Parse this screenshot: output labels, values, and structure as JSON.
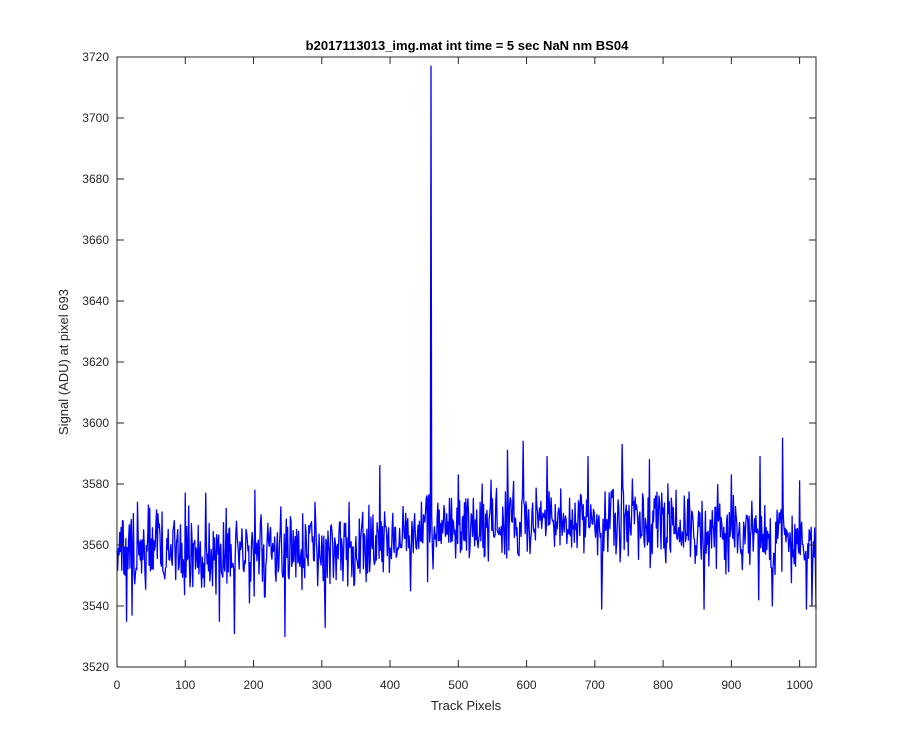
{
  "chart_data": {
    "type": "line",
    "title": "b2017113013_img.mat int time = 5 sec  NaN nm BS04",
    "xlabel": "Track Pixels",
    "ylabel": "Signal (ADU) at pixel 693",
    "xlim": [
      0,
      1024
    ],
    "ylim": [
      3520,
      3720
    ],
    "xticks": [
      0,
      100,
      200,
      300,
      400,
      500,
      600,
      700,
      800,
      900,
      1000
    ],
    "yticks": [
      3520,
      3540,
      3560,
      3580,
      3600,
      3620,
      3640,
      3660,
      3680,
      3700,
      3720
    ],
    "grid": false,
    "legend": "none",
    "series": [
      {
        "color": "#0000ff",
        "baseline_anchors": [
          [
            0,
            3557
          ],
          [
            100,
            3557
          ],
          [
            300,
            3558
          ],
          [
            400,
            3561
          ],
          [
            460,
            3565
          ],
          [
            560,
            3567
          ],
          [
            620,
            3567
          ],
          [
            700,
            3568
          ],
          [
            800,
            3568
          ],
          [
            900,
            3564
          ],
          [
            1000,
            3561
          ],
          [
            1024,
            3560
          ]
        ],
        "noise_amplitude": 9,
        "noise_seed": 693,
        "points": [
          [
            0,
            3558
          ],
          [
            8,
            3568
          ],
          [
            12,
            3550
          ],
          [
            14,
            3535
          ],
          [
            17,
            3562
          ],
          [
            22,
            3537
          ],
          [
            30,
            3574
          ],
          [
            48,
            3572
          ],
          [
            80,
            3555
          ],
          [
            100,
            3577
          ],
          [
            130,
            3577
          ],
          [
            150,
            3535
          ],
          [
            160,
            3572
          ],
          [
            172,
            3531
          ],
          [
            180,
            3561
          ],
          [
            202,
            3578
          ],
          [
            220,
            3562
          ],
          [
            246,
            3530
          ],
          [
            260,
            3560
          ],
          [
            290,
            3574
          ],
          [
            305,
            3533
          ],
          [
            340,
            3574
          ],
          [
            365,
            3548
          ],
          [
            385,
            3586
          ],
          [
            430,
            3545
          ],
          [
            455,
            3548
          ],
          [
            458,
            3561
          ],
          [
            460,
            3717
          ],
          [
            462,
            3559
          ],
          [
            466,
            3562
          ],
          [
            500,
            3583
          ],
          [
            535,
            3580
          ],
          [
            572,
            3591
          ],
          [
            595,
            3594
          ],
          [
            630,
            3589
          ],
          [
            690,
            3589
          ],
          [
            710,
            3539
          ],
          [
            740,
            3593
          ],
          [
            780,
            3588
          ],
          [
            860,
            3539
          ],
          [
            900,
            3583
          ],
          [
            940,
            3542
          ],
          [
            942,
            3589
          ],
          [
            960,
            3540
          ],
          [
            975,
            3595
          ],
          [
            1000,
            3581
          ],
          [
            1010,
            3539
          ],
          [
            1014,
            3565
          ],
          [
            1018,
            3540
          ],
          [
            1024,
            3539
          ]
        ]
      }
    ]
  }
}
